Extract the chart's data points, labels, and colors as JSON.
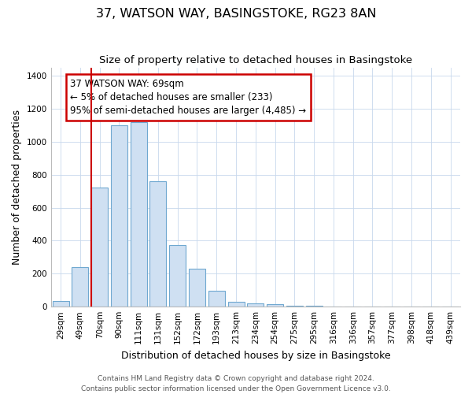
{
  "title": "37, WATSON WAY, BASINGSTOKE, RG23 8AN",
  "subtitle": "Size of property relative to detached houses in Basingstoke",
  "xlabel": "Distribution of detached houses by size in Basingstoke",
  "ylabel": "Number of detached properties",
  "bar_labels": [
    "29sqm",
    "49sqm",
    "70sqm",
    "90sqm",
    "111sqm",
    "131sqm",
    "152sqm",
    "172sqm",
    "193sqm",
    "213sqm",
    "234sqm",
    "254sqm",
    "275sqm",
    "295sqm",
    "316sqm",
    "336sqm",
    "357sqm",
    "377sqm",
    "398sqm",
    "418sqm",
    "439sqm"
  ],
  "bar_values": [
    35,
    240,
    720,
    1100,
    1120,
    760,
    375,
    230,
    95,
    30,
    20,
    15,
    5,
    5,
    3,
    2,
    0,
    0,
    0,
    0,
    0
  ],
  "bar_color": "#cfe0f2",
  "bar_edge_color": "#6fa8d0",
  "vline_x_index": 2,
  "vline_color": "#cc0000",
  "ylim": [
    0,
    1450
  ],
  "yticks": [
    0,
    200,
    400,
    600,
    800,
    1000,
    1200,
    1400
  ],
  "annotation_title": "37 WATSON WAY: 69sqm",
  "annotation_line1": "← 5% of detached houses are smaller (233)",
  "annotation_line2": "95% of semi-detached houses are larger (4,485) →",
  "annotation_box_color": "#ffffff",
  "annotation_box_edge": "#cc0000",
  "footer_line1": "Contains HM Land Registry data © Crown copyright and database right 2024.",
  "footer_line2": "Contains public sector information licensed under the Open Government Licence v3.0.",
  "title_fontsize": 11.5,
  "subtitle_fontsize": 9.5,
  "axis_label_fontsize": 9,
  "tick_fontsize": 7.5,
  "annotation_fontsize": 8.5,
  "footer_fontsize": 6.5
}
